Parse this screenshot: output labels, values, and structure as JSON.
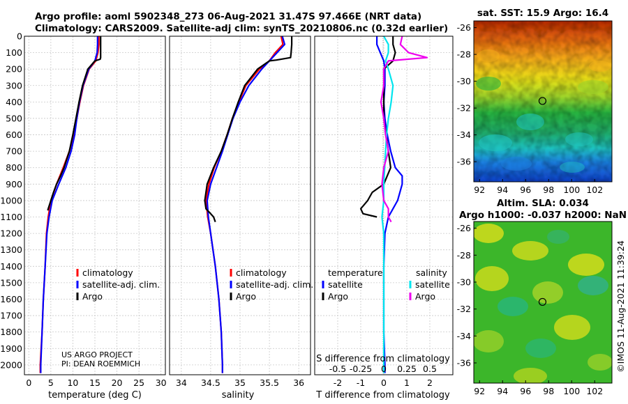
{
  "header": {
    "title_line1": "Argo profile: aoml 5902348_273 06-Aug-2021 31.47S 97.466E (NRT data)",
    "title_line2": "Climatology: CARS2009. Satellite-adj clim: synTS_20210806.nc (0.32d earlier)"
  },
  "credits": {
    "project": "US ARGO PROJECT",
    "pi": "PI: DEAN ROEMMICH",
    "stamp": "©IMOS 11-Aug-2021 11:39:24"
  },
  "colors": {
    "climatology": "#ff0000",
    "satellite_adj": "#0000ff",
    "argo": "#000000",
    "satellite_s": "#00e5ee",
    "argo_s": "#ee00ee"
  },
  "chart_data": [
    {
      "type": "line",
      "name": "temperature-profile",
      "xlabel": "temperature (deg C)",
      "ylabel": "",
      "xlim": [
        -1,
        31
      ],
      "ylim": [
        2060,
        0
      ],
      "xticks": [
        "0",
        "5",
        "10",
        "15",
        "20",
        "25",
        "30"
      ],
      "yticks": [
        "0",
        "100",
        "200",
        "300",
        "400",
        "500",
        "600",
        "700",
        "800",
        "900",
        "1000",
        "1100",
        "1200",
        "1300",
        "1400",
        "1500",
        "1600",
        "1700",
        "1800",
        "1900",
        "2000"
      ],
      "grid": true,
      "legend": [
        "climatology",
        "satellite-adj. clim.",
        "Argo"
      ],
      "series": [
        {
          "name": "climatology",
          "depth": [
            0,
            50,
            100,
            150,
            200,
            300,
            400,
            500,
            600,
            700,
            800,
            900,
            1000,
            1100,
            1200,
            1400,
            1600,
            1800,
            2000,
            2050
          ],
          "values": [
            15.9,
            15.9,
            15.7,
            15.2,
            13.7,
            12.4,
            11.6,
            10.9,
            10.2,
            9.2,
            7.8,
            6.3,
            5.0,
            4.4,
            4.0,
            3.7,
            3.3,
            3.0,
            2.6,
            2.6
          ]
        },
        {
          "name": "satellite-adj. clim.",
          "depth": [
            0,
            50,
            100,
            150,
            200,
            300,
            400,
            500,
            600,
            700,
            800,
            900,
            1000,
            1100,
            1200,
            1400,
            1600,
            1800,
            2000,
            2050
          ],
          "values": [
            15.6,
            15.6,
            15.5,
            15.0,
            13.6,
            12.3,
            11.5,
            10.9,
            10.4,
            9.6,
            8.4,
            6.8,
            5.3,
            4.6,
            4.1,
            3.7,
            3.3,
            3.0,
            2.7,
            2.7
          ]
        },
        {
          "name": "Argo",
          "depth": [
            0,
            50,
            100,
            130,
            140,
            150,
            200,
            300,
            400,
            500,
            600,
            700,
            800,
            850,
            900,
            950,
            1000,
            1050,
            1060
          ],
          "values": [
            16.3,
            16.3,
            16.3,
            16.3,
            16.2,
            15.0,
            13.4,
            12.2,
            11.4,
            10.7,
            10.0,
            9.2,
            8.0,
            7.2,
            6.3,
            5.6,
            5.0,
            4.4,
            4.3
          ]
        }
      ]
    },
    {
      "type": "line",
      "name": "salinity-profile",
      "xlabel": "salinity",
      "ylabel": "",
      "xlim": [
        33.8,
        36.2
      ],
      "ylim": [
        2060,
        0
      ],
      "xticks": [
        "34",
        "34.5",
        "35",
        "35.5",
        "36"
      ],
      "grid": true,
      "legend": [
        "climatology",
        "satellite-adj. clim.",
        "Argo"
      ],
      "series": [
        {
          "name": "climatology",
          "depth": [
            0,
            50,
            100,
            150,
            200,
            300,
            400,
            500,
            600,
            700,
            800,
            900,
            1000,
            1100,
            1200,
            1400,
            1600,
            1800,
            2000,
            2050
          ],
          "values": [
            35.7,
            35.73,
            35.6,
            35.5,
            35.33,
            35.1,
            34.98,
            34.87,
            34.78,
            34.68,
            34.56,
            34.47,
            34.42,
            34.45,
            34.5,
            34.58,
            34.64,
            34.68,
            34.7,
            34.7
          ]
        },
        {
          "name": "satellite-adj. clim.",
          "depth": [
            0,
            50,
            100,
            150,
            200,
            300,
            400,
            500,
            600,
            700,
            800,
            900,
            1000,
            1100,
            1200,
            1400,
            1600,
            1800,
            2000,
            2050
          ],
          "values": [
            35.72,
            35.76,
            35.63,
            35.5,
            35.37,
            35.15,
            35.0,
            34.88,
            34.79,
            34.7,
            34.6,
            34.5,
            34.44,
            34.46,
            34.5,
            34.58,
            34.64,
            34.68,
            34.7,
            34.7
          ]
        },
        {
          "name": "Argo",
          "depth": [
            0,
            50,
            100,
            130,
            145,
            150,
            200,
            300,
            400,
            500,
            600,
            700,
            800,
            900,
            1000,
            1050,
            1080,
            1100,
            1130
          ],
          "values": [
            35.88,
            35.88,
            35.87,
            35.86,
            35.62,
            35.5,
            35.3,
            35.08,
            34.97,
            34.87,
            34.78,
            34.68,
            34.55,
            34.44,
            34.4,
            34.42,
            34.5,
            34.55,
            34.58
          ]
        }
      ]
    },
    {
      "type": "line",
      "name": "difference-profile",
      "xlabel": "T difference from climatology",
      "xlabel_top": "S difference from climatology",
      "xlim": [
        -3,
        3
      ],
      "ylim": [
        2060,
        0
      ],
      "xticks": [
        "-2",
        "-1",
        "0",
        "1",
        "2"
      ],
      "xticks_top": [
        "-0.5",
        "-0.25",
        "0",
        "0.25",
        "0.5"
      ],
      "grid": true,
      "legend_headers": [
        "temperature",
        "salinity"
      ],
      "legend": [
        "satellite",
        "Argo",
        "satellite",
        "Argo"
      ],
      "series": [
        {
          "name": "temperature satellite",
          "depth": [
            0,
            50,
            100,
            150,
            200,
            300,
            400,
            500,
            600,
            700,
            800,
            850,
            900,
            1000,
            1050,
            1100,
            1200,
            1400,
            1600,
            1800,
            2000,
            2050
          ],
          "values": [
            -0.3,
            -0.3,
            -0.15,
            0.0,
            0.05,
            0.05,
            0.0,
            0.05,
            0.15,
            0.3,
            0.5,
            0.8,
            0.8,
            0.6,
            0.4,
            0.2,
            0.05,
            0.0,
            0.0,
            0.0,
            0.05,
            0.05
          ]
        },
        {
          "name": "temperature Argo",
          "depth": [
            0,
            50,
            100,
            150,
            200,
            300,
            400,
            500,
            600,
            700,
            800,
            900,
            950,
            1000,
            1050,
            1080,
            1100
          ],
          "values": [
            0.4,
            0.4,
            0.5,
            0.4,
            0.0,
            0.0,
            0.0,
            0.0,
            0.1,
            0.2,
            0.3,
            0.0,
            -0.5,
            -0.7,
            -1.0,
            -0.9,
            -0.3
          ]
        },
        {
          "name": "salinity satellite",
          "depth": [
            0,
            50,
            100,
            150,
            200,
            300,
            400,
            500,
            600,
            700,
            800,
            900,
            1000,
            1100,
            1200,
            1400,
            1600,
            1800,
            2000,
            2050
          ],
          "values": [
            0.0,
            0.05,
            0.05,
            0.02,
            0.05,
            0.1,
            0.08,
            0.05,
            0.03,
            0.02,
            0.01,
            0.0,
            0.0,
            -0.02,
            0.0,
            0.0,
            0.0,
            0.0,
            0.0,
            0.0
          ]
        },
        {
          "name": "salinity Argo",
          "depth": [
            0,
            50,
            100,
            130,
            150,
            200,
            300,
            400,
            500,
            600,
            700,
            800,
            900,
            1000,
            1050,
            1100,
            1130
          ],
          "values": [
            0.2,
            0.18,
            0.27,
            0.47,
            0.05,
            0.0,
            0.0,
            -0.03,
            0.0,
            0.02,
            0.05,
            0.0,
            -0.02,
            0.0,
            0.05,
            0.05,
            0.08
          ]
        }
      ]
    },
    {
      "type": "heatmap",
      "name": "sst-map",
      "title": "sat. SST: 15.9 Argo: 16.4",
      "xlim": [
        91.5,
        103.5
      ],
      "ylim": [
        -37.5,
        -25.5
      ],
      "xticks": [
        "92",
        "94",
        "96",
        "98",
        "100",
        "102"
      ],
      "yticks": [
        "-26",
        "-28",
        "-30",
        "-32",
        "-34",
        "-36"
      ],
      "marker": {
        "lon": 97.466,
        "lat": -31.47
      },
      "grid_values_deg_c": [
        [
          24,
          24,
          23,
          23,
          22,
          22,
          21,
          21
        ],
        [
          22,
          22,
          21,
          21,
          21,
          20,
          20,
          20
        ],
        [
          20,
          19,
          19,
          19,
          19,
          18,
          18,
          18
        ],
        [
          17,
          17,
          17,
          17,
          16,
          16,
          17,
          16
        ],
        [
          16,
          16,
          16,
          15,
          15,
          15,
          16,
          16
        ],
        [
          15,
          15,
          14,
          14,
          14,
          14,
          15,
          15
        ],
        [
          14,
          14,
          13,
          13,
          13,
          13,
          14,
          14
        ]
      ]
    },
    {
      "type": "heatmap",
      "name": "sla-map",
      "title_line1": "Altim. SLA: 0.034",
      "title_line2": "Argo h1000: -0.037 h2000: NaN",
      "xlim": [
        91.5,
        103.5
      ],
      "ylim": [
        -37.5,
        -25.5
      ],
      "xticks": [
        "92",
        "94",
        "96",
        "98",
        "100",
        "102"
      ],
      "yticks": [
        "-26",
        "-28",
        "-30",
        "-32",
        "-34",
        "-36"
      ],
      "marker": {
        "lon": 97.466,
        "lat": -31.47
      }
    }
  ]
}
